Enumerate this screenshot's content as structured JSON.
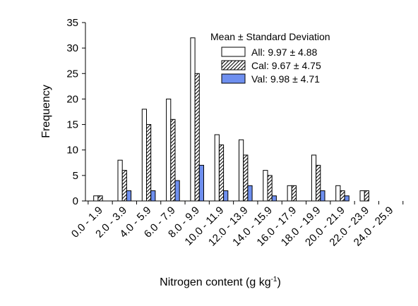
{
  "chart_data": {
    "type": "bar",
    "xlabel": "Nitrogen content (g kg",
    "xlabel_sup": "-1",
    "xlabel_end": ")",
    "ylabel": "Frequency",
    "ylim": [
      0,
      35
    ],
    "yticks": [
      0,
      5,
      10,
      15,
      20,
      25,
      30,
      35
    ],
    "grid": false,
    "legend_placement": "top-right",
    "legend_title": "Mean ± Standard Deviation",
    "categories": [
      "0.0 - 1.9",
      "2.0 - 3.9",
      "4.0 - 5.9",
      "6.0 - 7.9",
      "8.0 - 9.9",
      "10.0 - 11.9",
      "12.0 - 13.9",
      "14.0 - 15.9",
      "16.0 - 17.9",
      "18.0 - 19.9",
      "20.0 - 21.9",
      "22.0 - 23.9",
      "24.0 - 25.9"
    ],
    "series": [
      {
        "name": "All: 9.97 ± 4.88",
        "style": "open",
        "color": "#ffffff",
        "values": [
          1,
          8,
          18,
          20,
          32,
          13,
          12,
          6,
          3,
          9,
          3,
          2,
          0
        ]
      },
      {
        "name": "Cal: 9.67 ± 4.75",
        "style": "hatched",
        "color": "#ffffff",
        "values": [
          1,
          6,
          15,
          16,
          25,
          11,
          9,
          5,
          3,
          7,
          2,
          2,
          0
        ]
      },
      {
        "name": "Val: 9.98 ± 4.71",
        "style": "filled",
        "color": "#6e8fef",
        "values": [
          0,
          2,
          2,
          4,
          7,
          2,
          3,
          1,
          0,
          2,
          1,
          0,
          0
        ]
      }
    ]
  }
}
